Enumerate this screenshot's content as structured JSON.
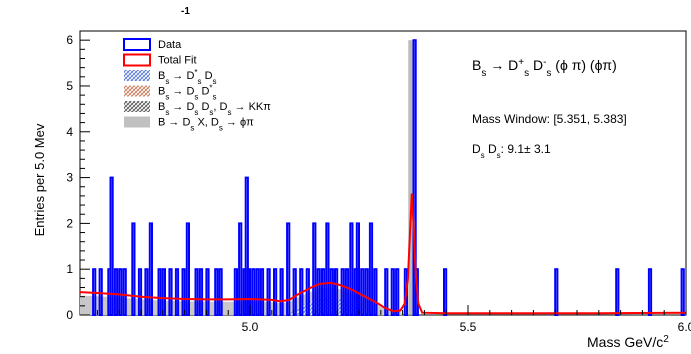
{
  "header_fragment": "-1",
  "chart_data": {
    "type": "bar",
    "xlabel": "Mass GeV/c",
    "xlabel_sup": "2",
    "ylabel": "Entries per 5.0 Mev",
    "xlim": [
      4.61,
      6.0
    ],
    "ylim": [
      0,
      6.2
    ],
    "x_ticks": [
      {
        "value": 5.0,
        "label": "5.0"
      },
      {
        "value": 5.5,
        "label": "5.5"
      },
      {
        "value": 6.0,
        "label": "6.0"
      }
    ],
    "y_ticks": [
      {
        "value": 0,
        "label": "0"
      },
      {
        "value": 1,
        "label": "1"
      },
      {
        "value": 2,
        "label": "2"
      },
      {
        "value": 3,
        "label": "3"
      },
      {
        "value": 4,
        "label": "4"
      },
      {
        "value": 5,
        "label": "5"
      },
      {
        "value": 6,
        "label": "6"
      }
    ],
    "bin_width": 0.005,
    "data_bins": [
      [
        4.64,
        1
      ],
      [
        4.655,
        1
      ],
      [
        4.675,
        1
      ],
      [
        4.68,
        3
      ],
      [
        4.69,
        1
      ],
      [
        4.7,
        1
      ],
      [
        4.71,
        1
      ],
      [
        4.73,
        2
      ],
      [
        4.745,
        1
      ],
      [
        4.76,
        1
      ],
      [
        4.77,
        2
      ],
      [
        4.79,
        1
      ],
      [
        4.8,
        1
      ],
      [
        4.815,
        1
      ],
      [
        4.83,
        1
      ],
      [
        4.845,
        1
      ],
      [
        4.855,
        2
      ],
      [
        4.875,
        1
      ],
      [
        4.885,
        1
      ],
      [
        4.9,
        1
      ],
      [
        4.92,
        1
      ],
      [
        4.93,
        1
      ],
      [
        4.965,
        1
      ],
      [
        4.975,
        2
      ],
      [
        4.985,
        1
      ],
      [
        4.99,
        3
      ],
      [
        4.995,
        1
      ],
      [
        5.005,
        1
      ],
      [
        5.015,
        1
      ],
      [
        5.025,
        1
      ],
      [
        5.04,
        1
      ],
      [
        5.055,
        1
      ],
      [
        5.07,
        1
      ],
      [
        5.085,
        2
      ],
      [
        5.1,
        1
      ],
      [
        5.115,
        1
      ],
      [
        5.13,
        1
      ],
      [
        5.145,
        2
      ],
      [
        5.155,
        1
      ],
      [
        5.165,
        1
      ],
      [
        5.175,
        2
      ],
      [
        5.185,
        1
      ],
      [
        5.195,
        1
      ],
      [
        5.21,
        1
      ],
      [
        5.22,
        1
      ],
      [
        5.23,
        2
      ],
      [
        5.24,
        1
      ],
      [
        5.245,
        2
      ],
      [
        5.255,
        1
      ],
      [
        5.265,
        1
      ],
      [
        5.275,
        2
      ],
      [
        5.285,
        1
      ],
      [
        5.31,
        1
      ],
      [
        5.325,
        1
      ],
      [
        5.335,
        1
      ],
      [
        5.355,
        1
      ],
      [
        5.375,
        6
      ],
      [
        5.38,
        1
      ],
      [
        5.445,
        1
      ],
      [
        5.7,
        1
      ],
      [
        5.84,
        1
      ],
      [
        5.915,
        1
      ],
      [
        5.99,
        1
      ]
    ],
    "fit_curve": [
      [
        4.61,
        0.5
      ],
      [
        4.65,
        0.48
      ],
      [
        4.7,
        0.45
      ],
      [
        4.75,
        0.4
      ],
      [
        4.8,
        0.37
      ],
      [
        4.85,
        0.35
      ],
      [
        4.9,
        0.34
      ],
      [
        4.95,
        0.34
      ],
      [
        5.0,
        0.35
      ],
      [
        5.05,
        0.33
      ],
      [
        5.07,
        0.3
      ],
      [
        5.09,
        0.33
      ],
      [
        5.11,
        0.45
      ],
      [
        5.14,
        0.6
      ],
      [
        5.16,
        0.68
      ],
      [
        5.185,
        0.7
      ],
      [
        5.205,
        0.66
      ],
      [
        5.23,
        0.57
      ],
      [
        5.26,
        0.42
      ],
      [
        5.29,
        0.27
      ],
      [
        5.31,
        0.15
      ],
      [
        5.33,
        0.08
      ],
      [
        5.345,
        0.1
      ],
      [
        5.355,
        0.25
      ],
      [
        5.362,
        0.8
      ],
      [
        5.367,
        1.8
      ],
      [
        5.371,
        2.65
      ],
      [
        5.375,
        2.0
      ],
      [
        5.38,
        0.9
      ],
      [
        5.386,
        0.25
      ],
      [
        5.395,
        0.05
      ],
      [
        5.45,
        0.04
      ],
      [
        5.6,
        0.04
      ],
      [
        5.8,
        0.04
      ],
      [
        6.0,
        0.05
      ]
    ],
    "peak_component": {
      "center": 5.371,
      "height": 6.0,
      "width": 0.004
    },
    "legend": {
      "placement": "top-left",
      "entries": [
        {
          "type": "data",
          "html": "Data",
          "color": "#0000ff"
        },
        {
          "type": "fit",
          "html": "Total Fit",
          "color": "#ff0000"
        },
        {
          "type": "dsds",
          "html": "B<tspan baseline-shift=\"sub\" font-size=\"8\">s</tspan> → D<tspan baseline-shift=\"super\" font-size=\"8\">*</tspan><tspan baseline-shift=\"sub\" font-size=\"8\">s</tspan> D<tspan baseline-shift=\"sub\" font-size=\"8\">s</tspan>",
          "color": "#5577dd"
        },
        {
          "type": "dsstar",
          "html": "B<tspan baseline-shift=\"sub\" font-size=\"8\">s</tspan> → D<tspan baseline-shift=\"sub\" font-size=\"8\">s</tspan> D<tspan baseline-shift=\"super\" font-size=\"8\">*</tspan><tspan baseline-shift=\"sub\" font-size=\"8\">s</tspan>",
          "color": "#cc7755"
        },
        {
          "type": "kkpi",
          "html": "B<tspan baseline-shift=\"sub\" font-size=\"8\">s</tspan> → D<tspan baseline-shift=\"sub\" font-size=\"8\">s</tspan> D<tspan baseline-shift=\"sub\" font-size=\"8\">s</tspan>, D<tspan baseline-shift=\"sub\" font-size=\"8\">s</tspan> → KKπ",
          "color": "#555555"
        },
        {
          "type": "bdx",
          "html": "B → D<tspan baseline-shift=\"sub\" font-size=\"8\">s</tspan> X, D<tspan baseline-shift=\"sub\" font-size=\"8\">s</tspan> → ϕπ",
          "color": "#c0c0c0"
        }
      ]
    },
    "annotations": {
      "title_html": "B<tspan baseline-shift=\"sub\" font-size=\"10\">s</tspan> → D<tspan baseline-shift=\"super\" font-size=\"10\">+</tspan><tspan baseline-shift=\"sub\" font-size=\"10\">s</tspan> D<tspan baseline-shift=\"super\" font-size=\"10\">-</tspan><tspan baseline-shift=\"sub\" font-size=\"10\">s</tspan> (ϕ π) (ϕπ)",
      "mass_window": "Mass Window: [5.351, 5.383]",
      "yield_html": "D<tspan baseline-shift=\"sub\" font-size=\"8\">s</tspan> D<tspan baseline-shift=\"sub\" font-size=\"8\">s</tspan>:  9.1±  3.1"
    },
    "colors": {
      "data": "#0000ff",
      "fit": "#ff0000",
      "peak_fill": "#aaaaaa",
      "bg_fill": "#c8c8c8"
    }
  }
}
